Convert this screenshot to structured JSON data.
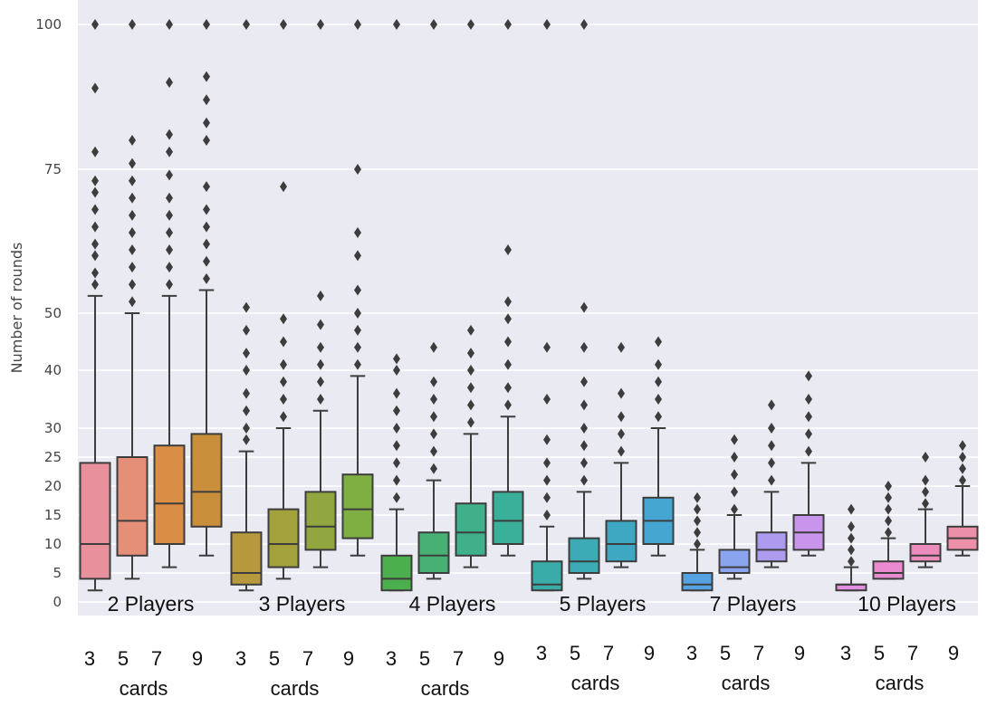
{
  "chart_data": {
    "type": "box",
    "ylabel": "Number of rounds",
    "yticks": [
      0,
      5,
      10,
      15,
      20,
      25,
      30,
      40,
      50,
      75,
      100
    ],
    "ylim": [
      0,
      100
    ],
    "grid": true,
    "card_labels": [
      "3",
      "5",
      "7",
      "9"
    ],
    "cards_word": "cards",
    "groups": [
      {
        "name": "2 Players",
        "boxes": [
          {
            "cards": 3,
            "color": "#e8909b",
            "min": 2,
            "q1": 4,
            "median": 10,
            "q3": 24,
            "whisker_high": 53,
            "outliers": [
              55,
              57,
              60,
              62,
              65,
              68,
              71,
              73,
              78,
              89,
              100
            ]
          },
          {
            "cards": 5,
            "color": "#e58e78",
            "min": 4,
            "q1": 8,
            "median": 14,
            "q3": 25,
            "whisker_high": 50,
            "outliers": [
              52,
              55,
              58,
              61,
              64,
              67,
              70,
              73,
              76,
              80,
              100
            ]
          },
          {
            "cards": 7,
            "color": "#d98d45",
            "min": 6,
            "q1": 10,
            "median": 17,
            "q3": 27,
            "whisker_high": 53,
            "outliers": [
              55,
              58,
              61,
              64,
              67,
              70,
              74,
              78,
              81,
              90,
              100
            ]
          },
          {
            "cards": 9,
            "color": "#c98f3a",
            "min": 8,
            "q1": 13,
            "median": 19,
            "q3": 29,
            "whisker_high": 54,
            "outliers": [
              56,
              59,
              62,
              65,
              68,
              72,
              80,
              83,
              87,
              91,
              100
            ]
          }
        ]
      },
      {
        "name": "3 Players",
        "boxes": [
          {
            "cards": 3,
            "color": "#b5993c",
            "min": 2,
            "q1": 3,
            "median": 5,
            "q3": 12,
            "whisker_high": 26,
            "outliers": [
              28,
              30,
              33,
              36,
              40,
              43,
              47,
              51,
              100
            ]
          },
          {
            "cards": 5,
            "color": "#a3a13b",
            "min": 4,
            "q1": 6,
            "median": 10,
            "q3": 16,
            "whisker_high": 30,
            "outliers": [
              32,
              35,
              38,
              41,
              45,
              49,
              72,
              100
            ]
          },
          {
            "cards": 7,
            "color": "#92a63f",
            "min": 6,
            "q1": 9,
            "median": 13,
            "q3": 19,
            "whisker_high": 33,
            "outliers": [
              35,
              38,
              41,
              44,
              48,
              53,
              100
            ]
          },
          {
            "cards": 9,
            "color": "#7fae43",
            "min": 8,
            "q1": 11,
            "median": 16,
            "q3": 22,
            "whisker_high": 39,
            "outliers": [
              41,
              44,
              47,
              50,
              54,
              60,
              64,
              75,
              100
            ]
          }
        ]
      },
      {
        "name": "4 Players",
        "boxes": [
          {
            "cards": 3,
            "color": "#4caf4d",
            "min": 2,
            "q1": 2,
            "median": 4,
            "q3": 8,
            "whisker_high": 16,
            "outliers": [
              18,
              21,
              24,
              27,
              30,
              33,
              36,
              40,
              42,
              100
            ]
          },
          {
            "cards": 5,
            "color": "#47b073",
            "min": 4,
            "q1": 5,
            "median": 8,
            "q3": 12,
            "whisker_high": 21,
            "outliers": [
              23,
              26,
              29,
              32,
              35,
              38,
              44,
              100
            ]
          },
          {
            "cards": 7,
            "color": "#3fb08a",
            "min": 6,
            "q1": 8,
            "median": 12,
            "q3": 17,
            "whisker_high": 29,
            "outliers": [
              31,
              34,
              37,
              40,
              43,
              47,
              100
            ]
          },
          {
            "cards": 9,
            "color": "#3aaf9a",
            "min": 8,
            "q1": 10,
            "median": 14,
            "q3": 19,
            "whisker_high": 32,
            "outliers": [
              34,
              37,
              41,
              45,
              49,
              52,
              61,
              100
            ]
          }
        ]
      },
      {
        "name": "5 Players",
        "boxes": [
          {
            "cards": 3,
            "color": "#3aaca8",
            "min": 2,
            "q1": 2,
            "median": 3,
            "q3": 7,
            "whisker_high": 13,
            "outliers": [
              15,
              18,
              21,
              24,
              28,
              35,
              44,
              100
            ]
          },
          {
            "cards": 5,
            "color": "#3cabb5",
            "min": 4,
            "q1": 5,
            "median": 7,
            "q3": 11,
            "whisker_high": 19,
            "outliers": [
              21,
              24,
              27,
              30,
              34,
              38,
              44,
              51,
              100
            ]
          },
          {
            "cards": 7,
            "color": "#3ea8c2",
            "min": 6,
            "q1": 7,
            "median": 10,
            "q3": 14,
            "whisker_high": 24,
            "outliers": [
              26,
              29,
              32,
              36,
              44
            ]
          },
          {
            "cards": 9,
            "color": "#45a6d1",
            "min": 8,
            "q1": 10,
            "median": 14,
            "q3": 18,
            "whisker_high": 30,
            "outliers": [
              32,
              35,
              38,
              41,
              45
            ]
          }
        ]
      },
      {
        "name": "7 Players",
        "boxes": [
          {
            "cards": 3,
            "color": "#56a2e1",
            "min": 2,
            "q1": 2,
            "median": 3,
            "q3": 5,
            "whisker_high": 9,
            "outliers": [
              10,
              12,
              14,
              16,
              18
            ]
          },
          {
            "cards": 5,
            "color": "#8ba4ee",
            "min": 4,
            "q1": 5,
            "median": 6,
            "q3": 9,
            "whisker_high": 15,
            "outliers": [
              16,
              19,
              22,
              25,
              28
            ]
          },
          {
            "cards": 7,
            "color": "#ad9bf0",
            "min": 6,
            "q1": 7,
            "median": 9,
            "q3": 12,
            "whisker_high": 19,
            "outliers": [
              21,
              24,
              27,
              30,
              34
            ]
          },
          {
            "cards": 9,
            "color": "#c894ec",
            "min": 8,
            "q1": 9,
            "median": 12,
            "q3": 15,
            "whisker_high": 24,
            "outliers": [
              26,
              29,
              32,
              35,
              39
            ]
          }
        ]
      },
      {
        "name": "10 Players",
        "boxes": [
          {
            "cards": 3,
            "color": "#e28ee2",
            "min": 2,
            "q1": 2,
            "median": 3,
            "q3": 3,
            "whisker_high": 6,
            "outliers": [
              7,
              9,
              11,
              13,
              16
            ]
          },
          {
            "cards": 5,
            "color": "#ea8ad1",
            "min": 4,
            "q1": 4,
            "median": 5,
            "q3": 7,
            "whisker_high": 11,
            "outliers": [
              12,
              14,
              16,
              18,
              20
            ]
          },
          {
            "cards": 7,
            "color": "#ec8cbc",
            "min": 6,
            "q1": 7,
            "median": 8,
            "q3": 10,
            "whisker_high": 16,
            "outliers": [
              17,
              19,
              21,
              25
            ]
          },
          {
            "cards": 9,
            "color": "#ec8fa9",
            "min": 8,
            "q1": 9,
            "median": 11,
            "q3": 13,
            "whisker_high": 20,
            "outliers": [
              21,
              23,
              25,
              27
            ]
          }
        ]
      }
    ]
  }
}
